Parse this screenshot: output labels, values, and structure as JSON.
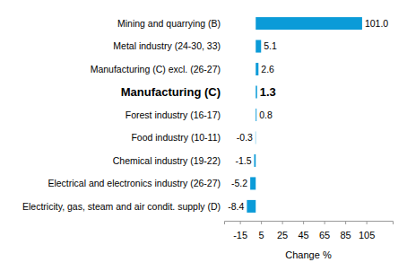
{
  "chart_data": {
    "type": "bar",
    "orientation": "horizontal",
    "categories": [
      "Mining and quarrying (B)",
      "Metal industry (24-30, 33)",
      "Manufacturing (C) excl. (26-27)",
      "Manufacturing (C)",
      "Forest industry (16-17)",
      "Food industry (10-11)",
      "Chemical industry (19-22)",
      "Electrical and electronics industry (26-27)",
      "Electricity, gas, steam and air condit. supply (D)"
    ],
    "values": [
      101,
      5.1,
      2.6,
      1.3,
      0.8,
      -0.3,
      -1.5,
      -5.2,
      -8.4
    ],
    "value_labels": [
      "101.0",
      "5.1",
      "2.6",
      "1.3",
      "0.8",
      "-0.3",
      "-1.5",
      "-5.2",
      "-8.4"
    ],
    "color": "#0b9bd8",
    "x_label": "Change %",
    "xlim": [
      -30,
      130
    ],
    "xticks": [
      -15,
      5,
      25,
      45,
      65,
      85,
      105
    ],
    "grid": false,
    "data_labels": true
  }
}
